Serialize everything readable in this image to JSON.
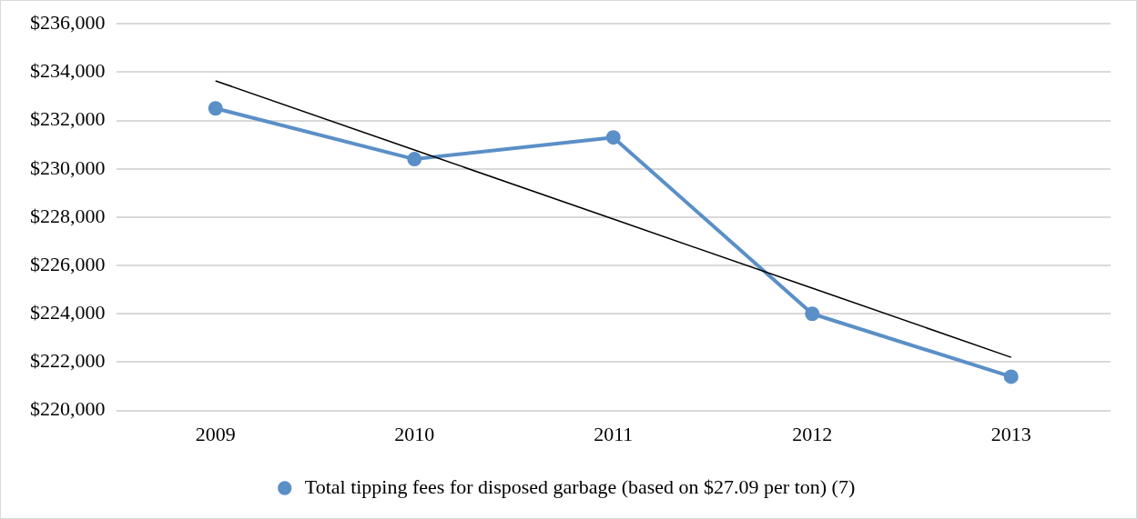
{
  "chart_data": {
    "type": "line",
    "categories": [
      "2009",
      "2010",
      "2011",
      "2012",
      "2013"
    ],
    "series": [
      {
        "name": "Total tipping fees for disposed garbage (based on $27.09 per ton) (7)",
        "color": "#5b8fc7",
        "values": [
          232500,
          230400,
          231300,
          224000,
          221400
        ],
        "marker": "circle"
      },
      {
        "type": "line",
        "color": "#000000",
        "values": [
          233640,
          230780,
          227920,
          225060,
          222200
        ],
        "marker": "none"
      }
    ],
    "ylim": [
      220000,
      236000
    ],
    "yticks": [
      {
        "value": 220000,
        "label": "$220,000"
      },
      {
        "value": 222000,
        "label": "$222,000"
      },
      {
        "value": 224000,
        "label": "$224,000"
      },
      {
        "value": 226000,
        "label": "$226,000"
      },
      {
        "value": 228000,
        "label": "$228,000"
      },
      {
        "value": 230000,
        "label": "$230,000"
      },
      {
        "value": 232000,
        "label": "$232,000"
      },
      {
        "value": 234000,
        "label": "$234,000"
      },
      {
        "value": 236000,
        "label": "$236,000"
      }
    ],
    "grid": "y",
    "legend": "bottom",
    "line_style": "solid"
  }
}
